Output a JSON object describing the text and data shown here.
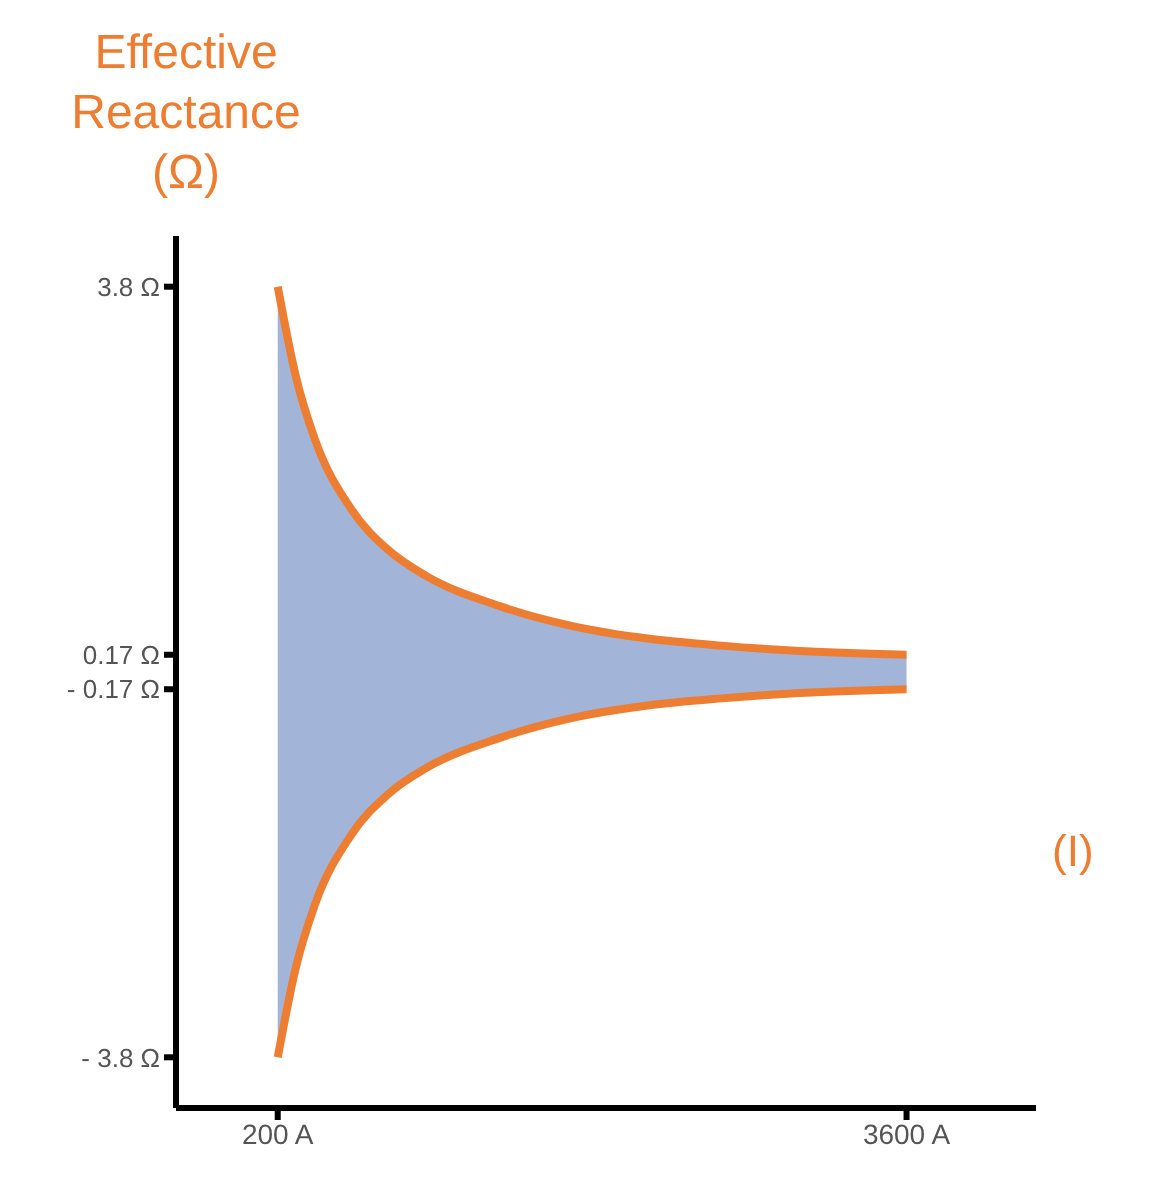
{
  "chart_data": {
    "type": "area",
    "ylabel": "Effective Reactance (Ω)",
    "xlabel": "(I)",
    "x": [
      200,
      300,
      400,
      600,
      800,
      1000,
      1400,
      1800,
      2200,
      2600,
      3000,
      3600
    ],
    "series": [
      {
        "color": "#a2b5d8",
        "values": [
          3.8,
          2.9,
          2.3,
          1.6,
          1.2,
          0.95,
          0.65,
          0.45,
          0.33,
          0.26,
          0.21,
          0.17
        ]
      },
      {
        "color": "#a2b5d8",
        "values": [
          -3.8,
          -2.9,
          -2.3,
          -1.6,
          -1.2,
          -0.95,
          -0.65,
          -0.45,
          -0.33,
          -0.26,
          -0.21,
          -0.17
        ]
      },
      {
        "type": "line",
        "color": "#ed7d31",
        "values": [
          3.8,
          2.9,
          2.3,
          1.6,
          1.2,
          0.95,
          0.65,
          0.45,
          0.33,
          0.26,
          0.21,
          0.17
        ]
      },
      {
        "type": "line",
        "color": "#ed7d31",
        "values": [
          -3.8,
          -2.9,
          -2.3,
          -1.6,
          -1.2,
          -0.95,
          -0.65,
          -0.45,
          -0.33,
          -0.26,
          -0.21,
          -0.17
        ]
      }
    ],
    "xlim": [
      -350,
      4300
    ],
    "xticks": [
      {
        "value": 200,
        "label": "200 A"
      },
      {
        "value": 3600,
        "label": "3600 A"
      }
    ],
    "ylim": [
      -4.3,
      4.3
    ],
    "yticks": [
      {
        "value": 3.8,
        "label": "3.8 Ω"
      },
      {
        "value": 0.17,
        "label": "0.17 Ω"
      },
      {
        "value": -0.17,
        "label": "- 0.17 Ω"
      },
      {
        "value": -3.8,
        "label": "- 3.8 Ω"
      }
    ],
    "grid": false,
    "legend": false
  }
}
